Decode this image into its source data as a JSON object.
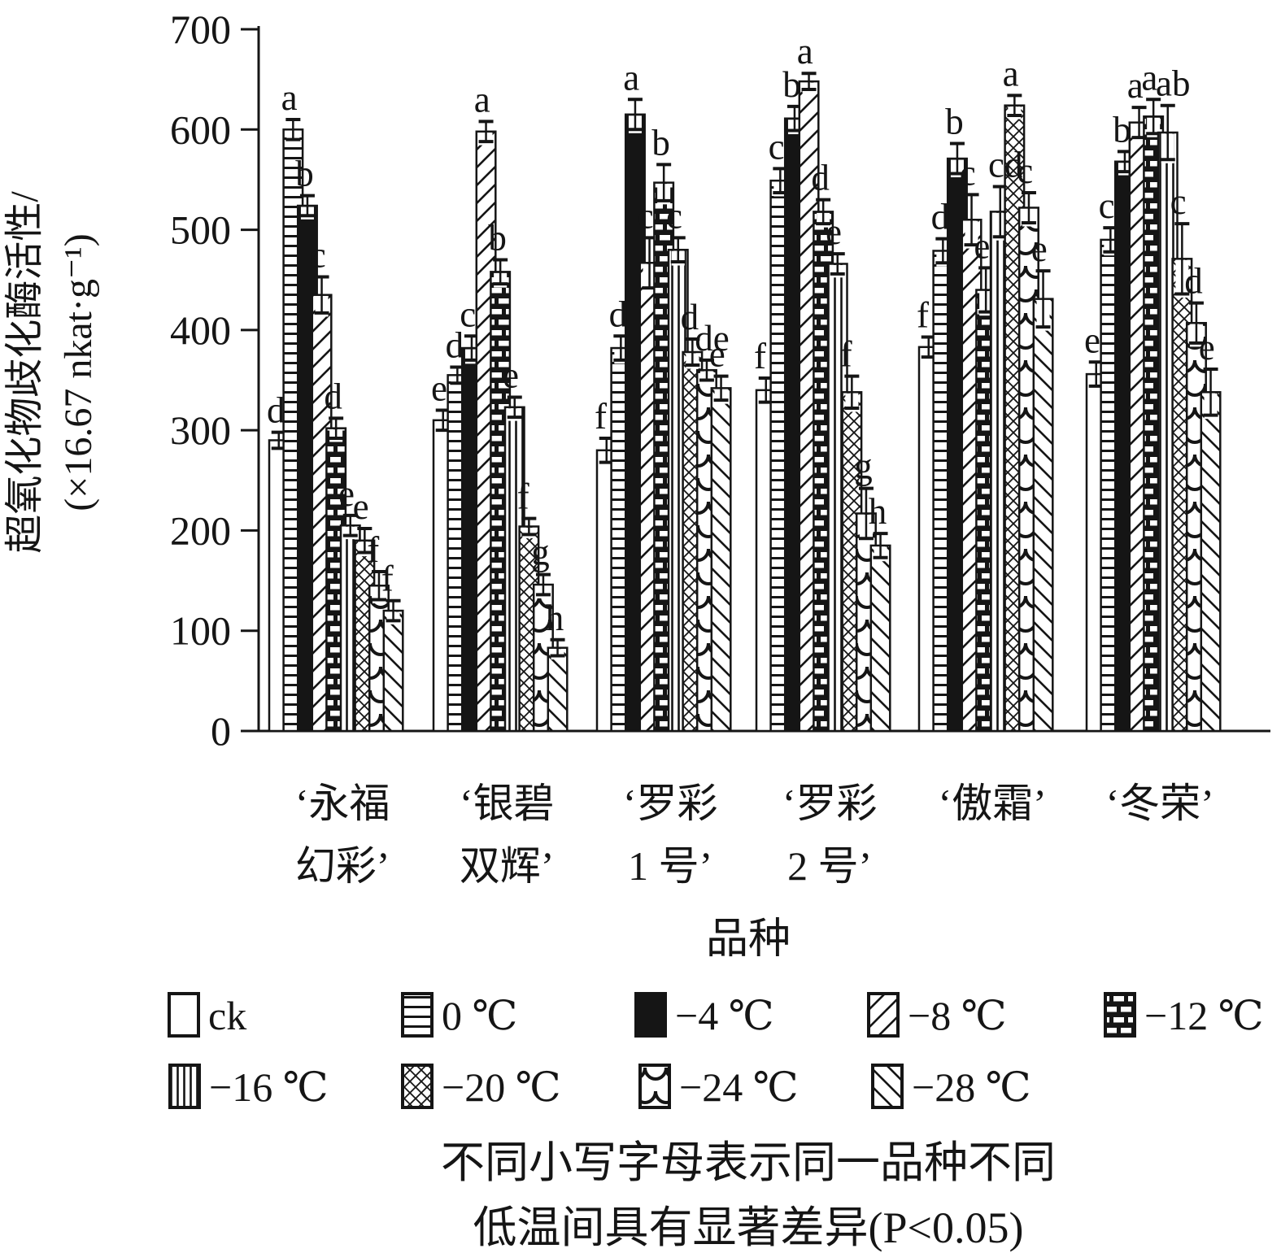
{
  "figure": {
    "y_axis": {
      "title_line1": "超氧化物歧化酶活性/",
      "title_line2": "(×16.67 nkat·g⁻¹)",
      "min": 0,
      "max": 700,
      "tick_step": 100,
      "tick_labels": [
        "0",
        "100",
        "200",
        "300",
        "400",
        "500",
        "600",
        "700"
      ]
    },
    "x_axis": {
      "title": "品种"
    },
    "footnote": {
      "line1": "不同小写字母表示同一品种不同",
      "line2": "低温间具有显著差异(P<0.05)"
    }
  },
  "chart_data": {
    "type": "bar",
    "title": "",
    "xlabel": "品种",
    "ylabel": "超氧化物歧化酶活性/(×16.67 nkat·g⁻¹)",
    "ylim": [
      0,
      700
    ],
    "grid": false,
    "legend_position": "bottom",
    "categories": [
      "永福幻彩",
      "银碧双辉",
      "罗彩1号",
      "罗彩2号",
      "傲霜",
      "冬荣"
    ],
    "category_display": [
      [
        "‘永福",
        "幻彩’"
      ],
      [
        "‘银碧",
        "双辉’"
      ],
      [
        "‘罗彩",
        "1 号’"
      ],
      [
        "‘罗彩",
        "2 号’"
      ],
      [
        "‘傲霜’"
      ],
      [
        "‘冬荣’"
      ]
    ],
    "series": [
      {
        "name": "ck",
        "pattern": "plain",
        "values": [
          290,
          310,
          280,
          340,
          383,
          356
        ],
        "errors": [
          8,
          10,
          12,
          12,
          10,
          12
        ],
        "letters": [
          "d",
          "e",
          "f",
          "f",
          "f",
          "e"
        ]
      },
      {
        "name": "0 ℃",
        "pattern": "hlines",
        "values": [
          600,
          355,
          382,
          549,
          479,
          490
        ],
        "errors": [
          10,
          8,
          12,
          12,
          12,
          12
        ],
        "letters": [
          "a",
          "d",
          "d",
          "c",
          "d",
          "c"
        ]
      },
      {
        "name": "−4 ℃",
        "pattern": "solid",
        "values": [
          524,
          382,
          615,
          611,
          571,
          568
        ],
        "errors": [
          10,
          12,
          15,
          12,
          15,
          10
        ],
        "letters": [
          "b",
          "c",
          "a",
          "b",
          "b",
          "b"
        ]
      },
      {
        "name": "−8 ℃",
        "pattern": "diag_up",
        "values": [
          435,
          598,
          467,
          648,
          510,
          607
        ],
        "errors": [
          18,
          10,
          25,
          8,
          25,
          15
        ],
        "letters": [
          "c",
          "a",
          "c",
          "a",
          "c",
          "a"
        ]
      },
      {
        "name": "−12 ℃",
        "pattern": "dash_black",
        "values": [
          302,
          458,
          547,
          518,
          440,
          613
        ],
        "errors": [
          10,
          12,
          18,
          12,
          22,
          17
        ],
        "letters": [
          "d",
          "b",
          "b",
          "d",
          "e",
          "a"
        ]
      },
      {
        "name": "−16 ℃",
        "pattern": "vlines",
        "values": [
          205,
          323,
          480,
          466,
          518,
          597
        ],
        "errors": [
          10,
          10,
          12,
          10,
          25,
          27
        ],
        "letters": [
          "e",
          "e",
          "c",
          "e",
          "cd",
          "ab"
        ]
      },
      {
        "name": "−20 ℃",
        "pattern": "crosshatch",
        "values": [
          190,
          204,
          378,
          338,
          624,
          471
        ],
        "errors": [
          12,
          8,
          13,
          16,
          10,
          35
        ],
        "letters": [
          "e",
          "f",
          "d",
          "f",
          "a",
          "c"
        ]
      },
      {
        "name": "−24 ℃",
        "pattern": "scales",
        "values": [
          145,
          146,
          360,
          217,
          522,
          407
        ],
        "errors": [
          14,
          10,
          10,
          25,
          15,
          20
        ],
        "letters": [
          "f",
          "g",
          "de",
          "g",
          "c",
          "d"
        ]
      },
      {
        "name": "−28 ℃",
        "pattern": "diag_down",
        "values": [
          120,
          83,
          342,
          185,
          431,
          338
        ],
        "errors": [
          10,
          8,
          12,
          12,
          28,
          23
        ],
        "letters": [
          "f",
          "h",
          "e",
          "h",
          "e",
          "e"
        ]
      }
    ],
    "significance_note": "不同小写字母表示同一品种不同低温间具有显著差异(P<0.05)"
  },
  "legend": {
    "rows": [
      [
        {
          "label": "ck",
          "pattern": "plain"
        },
        {
          "label": "0 ℃",
          "pattern": "hlines"
        },
        {
          "label": "−4 ℃",
          "pattern": "solid"
        },
        {
          "label": "−8 ℃",
          "pattern": "diag_up"
        },
        {
          "label": "−12 ℃",
          "pattern": "dash_black"
        }
      ],
      [
        {
          "label": "−16 ℃",
          "pattern": "vlines"
        },
        {
          "label": "−20 ℃",
          "pattern": "crosshatch"
        },
        {
          "label": "−24 ℃",
          "pattern": "scales"
        },
        {
          "label": "−28 ℃",
          "pattern": "diag_down"
        }
      ]
    ]
  }
}
